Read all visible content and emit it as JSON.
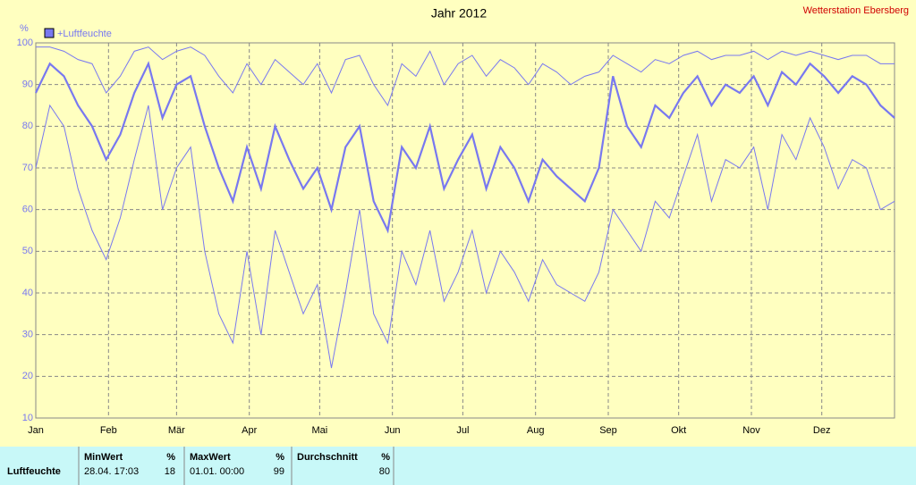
{
  "chart_data": {
    "type": "line",
    "title": "Jahr 2012",
    "station": "Wetterstation Ebersberg",
    "y_unit": "%",
    "x": [
      0,
      6,
      12,
      18,
      24,
      30,
      36,
      42,
      48,
      54,
      60,
      66,
      72,
      78,
      84,
      90,
      96,
      102,
      108,
      114,
      120,
      126,
      132,
      138,
      144,
      150,
      156,
      162,
      168,
      174,
      180,
      186,
      192,
      198,
      204,
      210,
      216,
      222,
      228,
      234,
      240,
      246,
      252,
      258,
      264,
      270,
      276,
      282,
      288,
      294,
      300,
      306,
      312,
      318,
      324,
      330,
      336,
      342,
      348,
      354,
      360,
      366
    ],
    "series": [
      {
        "name": "+Luftfeuchte",
        "color": "#7878f0",
        "values": [
          88,
          95,
          92,
          85,
          80,
          72,
          78,
          88,
          95,
          82,
          90,
          92,
          80,
          70,
          62,
          75,
          65,
          80,
          72,
          65,
          70,
          60,
          75,
          80,
          62,
          55,
          75,
          70,
          80,
          65,
          72,
          78,
          65,
          75,
          70,
          62,
          72,
          68,
          65,
          62,
          70,
          92,
          80,
          75,
          85,
          82,
          88,
          92,
          85,
          90,
          88,
          92,
          85,
          93,
          90,
          95,
          92,
          88,
          92,
          90,
          85,
          82
        ],
        "max": [
          99,
          99,
          98,
          96,
          95,
          88,
          92,
          98,
          99,
          96,
          98,
          99,
          97,
          92,
          88,
          95,
          90,
          96,
          93,
          90,
          95,
          88,
          96,
          97,
          90,
          85,
          95,
          92,
          98,
          90,
          95,
          97,
          92,
          96,
          94,
          90,
          95,
          93,
          90,
          92,
          93,
          97,
          95,
          93,
          96,
          95,
          97,
          98,
          96,
          97,
          97,
          98,
          96,
          98,
          97,
          98,
          97,
          96,
          97,
          97,
          95,
          95
        ],
        "min": [
          70,
          85,
          80,
          65,
          55,
          48,
          58,
          72,
          85,
          60,
          70,
          75,
          50,
          35,
          28,
          50,
          30,
          55,
          45,
          35,
          42,
          22,
          40,
          60,
          35,
          28,
          50,
          42,
          55,
          38,
          45,
          55,
          40,
          50,
          45,
          38,
          48,
          42,
          40,
          38,
          45,
          60,
          55,
          50,
          62,
          58,
          68,
          78,
          62,
          72,
          70,
          75,
          60,
          78,
          72,
          82,
          75,
          65,
          72,
          70,
          60,
          62
        ]
      }
    ],
    "xlim": [
      0,
      366
    ],
    "xticks": [
      {
        "value": 0,
        "label": "Jan"
      },
      {
        "value": 31,
        "label": "Feb"
      },
      {
        "value": 60,
        "label": "Mär"
      },
      {
        "value": 91,
        "label": "Apr"
      },
      {
        "value": 121,
        "label": "Mai"
      },
      {
        "value": 152,
        "label": "Jun"
      },
      {
        "value": 182,
        "label": "Jul"
      },
      {
        "value": 213,
        "label": "Aug"
      },
      {
        "value": 244,
        "label": "Sep"
      },
      {
        "value": 274,
        "label": "Okt"
      },
      {
        "value": 305,
        "label": "Nov"
      },
      {
        "value": 335,
        "label": "Dez"
      }
    ],
    "ylim": [
      10,
      100
    ],
    "yticks": [
      10,
      20,
      30,
      40,
      50,
      60,
      70,
      80,
      90,
      100
    ],
    "grid": true
  },
  "table": {
    "row_label": "Luftfeuchte",
    "columns": [
      {
        "header": "MinWert",
        "unit": "%",
        "time": "28.04. 17:03",
        "value": "18"
      },
      {
        "header": "MaxWert",
        "unit": "%",
        "time": "01.01. 00:00",
        "value": "99"
      },
      {
        "header": "Durchschnitt",
        "unit": "%",
        "time": "",
        "value": "80"
      }
    ]
  }
}
